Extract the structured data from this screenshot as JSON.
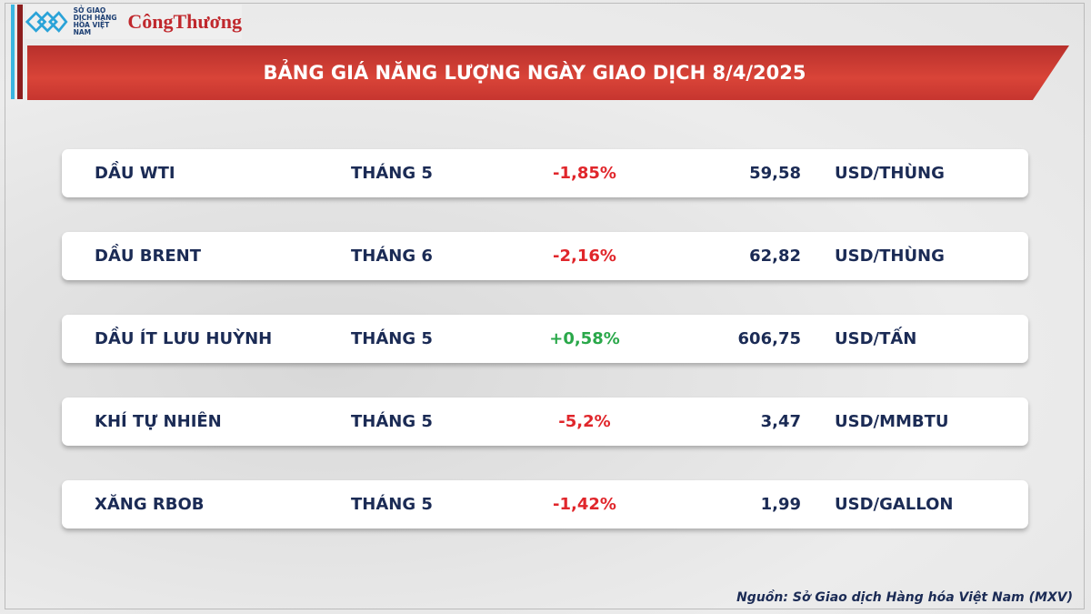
{
  "logo": {
    "mxv_text": "SỞ GIAO DỊCH HÀNG HÓA VIỆT NAM",
    "brand": "CôngThương"
  },
  "title": "BẢNG GIÁ NĂNG LƯỢNG NGÀY GIAO DỊCH 8/4/2025",
  "colors": {
    "negative": "#e0262b",
    "positive": "#2aa84a",
    "banner": "#c6352f",
    "text": "#1b2b55"
  },
  "rows": [
    {
      "name": "DẦU WTI",
      "month": "THÁNG 5",
      "change": "-1,85%",
      "price": "59,58",
      "unit": "USD/THÙNG",
      "direction": "down"
    },
    {
      "name": "DẦU BRENT",
      "month": "THÁNG 6",
      "change": "-2,16%",
      "price": "62,82",
      "unit": "USD/THÙNG",
      "direction": "down"
    },
    {
      "name": "DẦU ÍT LƯU HUỲNH",
      "month": "THÁNG 5",
      "change": "+0,58%",
      "price": "606,75",
      "unit": "USD/TẤN",
      "direction": "up"
    },
    {
      "name": "KHÍ TỰ NHIÊN",
      "month": "THÁNG 5",
      "change": "-5,2%",
      "price": "3,47",
      "unit": "USD/MMBTU",
      "direction": "down"
    },
    {
      "name": "XĂNG RBOB",
      "month": "THÁNG 5",
      "change": "-1,42%",
      "price": "1,99",
      "unit": "USD/GALLON",
      "direction": "down"
    }
  ],
  "source": "Nguồn: Sở Giao dịch Hàng hóa Việt Nam (MXV)"
}
